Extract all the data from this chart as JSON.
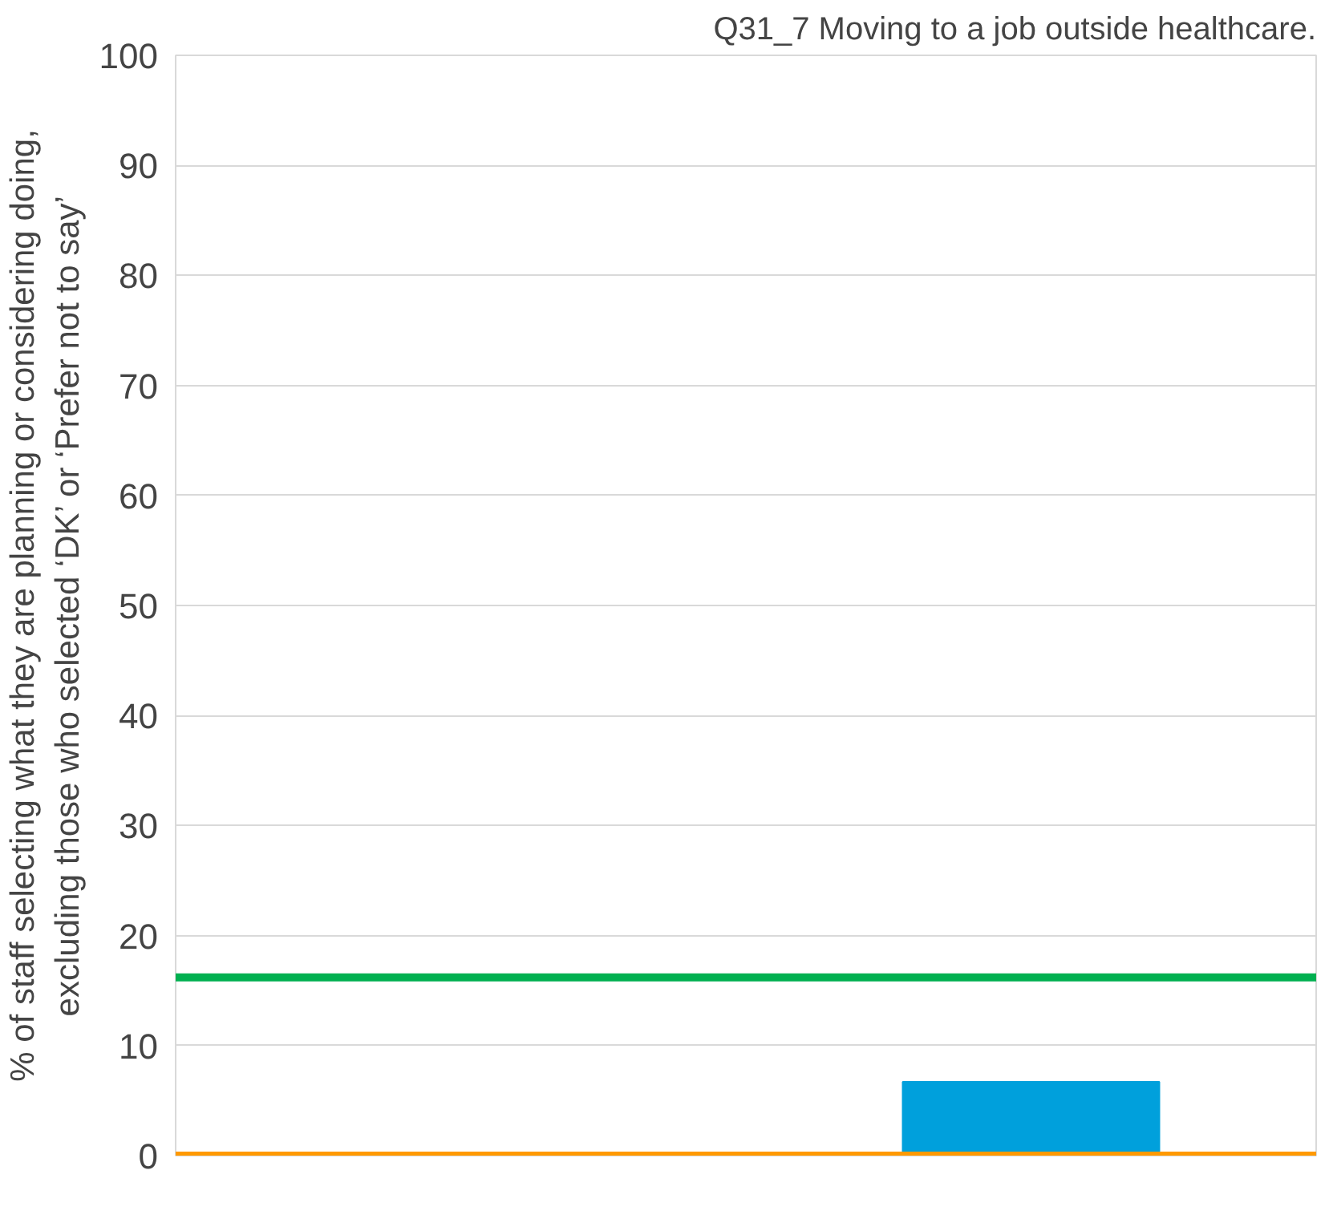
{
  "chart_data": {
    "type": "bar",
    "title": "Q31_7 Moving to a job outside healthcare.",
    "ylabel": "% of staff selecting what they are planning or considering doing, excluding those who selected ‘DK’ or ‘Prefer not to say’",
    "categories": [
      null,
      null
    ],
    "values": [
      null,
      6.7
    ],
    "color": "#00a0dc",
    "ylim": [
      0,
      100
    ],
    "yticks": [
      0,
      10,
      20,
      30,
      40,
      50,
      60,
      70,
      80,
      90,
      100
    ],
    "grid": "y",
    "ref_lines": [
      {
        "axis": "y",
        "value": 16.2,
        "color": "#00b050"
      },
      {
        "axis": "y",
        "value": 0,
        "color": "#ff9900"
      }
    ]
  }
}
